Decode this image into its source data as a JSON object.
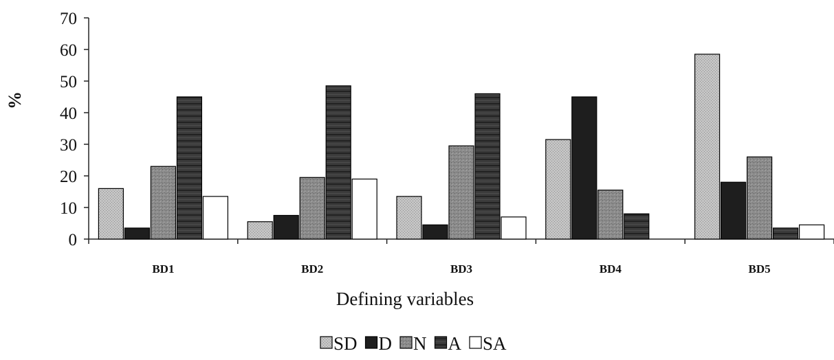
{
  "chart_data": {
    "type": "bar",
    "title": "",
    "xlabel": "Defining variables",
    "ylabel": "%",
    "ylim": [
      0,
      70
    ],
    "yticks": [
      0,
      10,
      20,
      30,
      40,
      50,
      60,
      70
    ],
    "categories": [
      "BD1",
      "BD2",
      "BD3",
      "BD4",
      "BD5"
    ],
    "series": [
      {
        "name": "SD",
        "values": [
          16,
          5.5,
          13.5,
          31.5,
          58.5
        ],
        "color": "#c2c2c2"
      },
      {
        "name": "D",
        "values": [
          3.5,
          7.5,
          4.5,
          45,
          18
        ],
        "color": "#1e1e1e"
      },
      {
        "name": "N",
        "values": [
          23,
          19.5,
          29.5,
          15.5,
          26
        ],
        "color": "#8a8a8a"
      },
      {
        "name": "A",
        "values": [
          45,
          48.5,
          46,
          8,
          3.5
        ],
        "color": "#3a3a3a"
      },
      {
        "name": "SA",
        "values": [
          13.5,
          19,
          7,
          0,
          4.5
        ],
        "color": "#ffffff"
      }
    ],
    "grid": false,
    "legend_position": "bottom"
  }
}
